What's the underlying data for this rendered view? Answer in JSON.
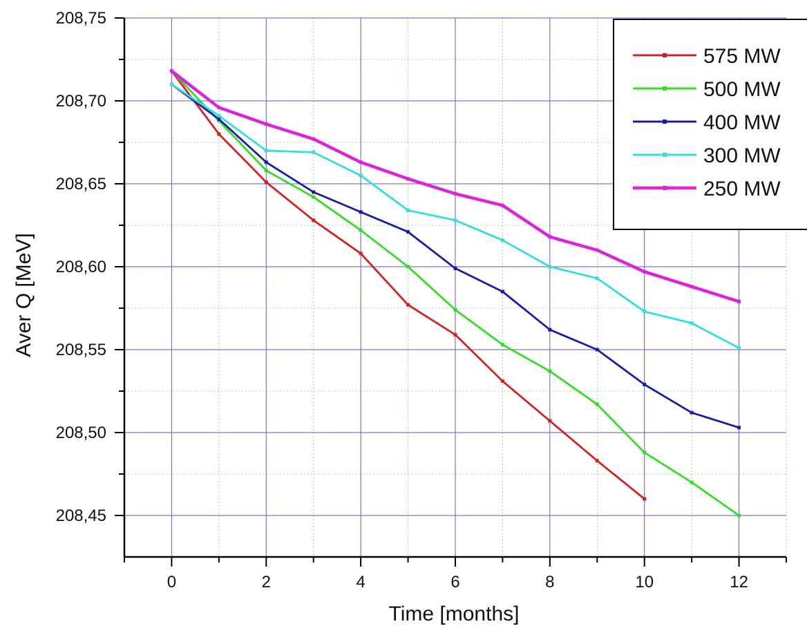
{
  "chart_data": {
    "type": "line",
    "xlabel": "Time [months]",
    "ylabel": "Aver Q [MeV]",
    "xlim": [
      -1,
      13
    ],
    "ylim": [
      208.425,
      208.75
    ],
    "x_ticks": [
      0,
      2,
      4,
      6,
      8,
      10,
      12
    ],
    "y_ticks": [
      208.45,
      208.5,
      208.55,
      208.6,
      208.65,
      208.7,
      208.75
    ],
    "x_tick_labels": [
      "0",
      "2",
      "4",
      "6",
      "8",
      "10",
      "12"
    ],
    "y_tick_labels": [
      "208,45",
      "208,50",
      "208,55",
      "208,60",
      "208,65",
      "208,70",
      "208,75"
    ],
    "grid": true,
    "legend_position": "top-right",
    "series": [
      {
        "name": "575 MW",
        "color": "#d42020",
        "x": [
          0,
          1,
          2,
          3,
          4,
          5,
          6,
          7,
          8,
          9,
          10
        ],
        "y": [
          208.718,
          208.68,
          208.651,
          208.628,
          208.608,
          208.577,
          208.559,
          208.531,
          208.507,
          208.483,
          208.46
        ]
      },
      {
        "name": "500 MW",
        "color": "#33dd22",
        "x": [
          0,
          1,
          2,
          3,
          4,
          5,
          6,
          7,
          8,
          9,
          10,
          11,
          12
        ],
        "y": [
          208.718,
          208.688,
          208.658,
          208.642,
          208.622,
          208.6,
          208.574,
          208.553,
          208.537,
          208.517,
          208.488,
          208.47,
          208.45
        ]
      },
      {
        "name": "400 MW",
        "color": "#1a1aaa",
        "x": [
          0,
          1,
          2,
          3,
          4,
          5,
          6,
          7,
          8,
          9,
          10,
          11,
          12
        ],
        "y": [
          208.71,
          208.689,
          208.663,
          208.645,
          208.633,
          208.621,
          208.599,
          208.585,
          208.562,
          208.55,
          208.529,
          208.512,
          208.503
        ]
      },
      {
        "name": "300 MW",
        "color": "#33dddd",
        "x": [
          0,
          1,
          2,
          3,
          4,
          5,
          6,
          7,
          8,
          9,
          10,
          11,
          12
        ],
        "y": [
          208.71,
          208.691,
          208.67,
          208.669,
          208.655,
          208.634,
          208.628,
          208.616,
          208.6,
          208.593,
          208.573,
          208.566,
          208.551
        ]
      },
      {
        "name": "250 MW",
        "color": "#dd22dd",
        "x": [
          0,
          1,
          2,
          3,
          4,
          5,
          6,
          7,
          8,
          9,
          10,
          11,
          12
        ],
        "y": [
          208.718,
          208.696,
          208.686,
          208.677,
          208.663,
          208.653,
          208.644,
          208.637,
          208.618,
          208.61,
          208.597,
          208.588,
          208.579
        ]
      }
    ]
  }
}
